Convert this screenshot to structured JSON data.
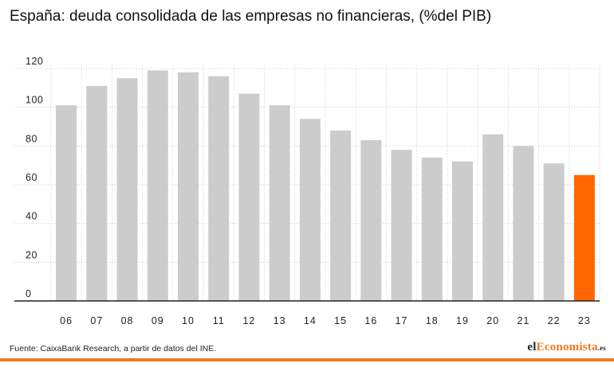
{
  "title": "España: deuda consolidada de las empresas no financieras, (%del PIB)",
  "source": "Fuente: CaixaBank Research, a partir de datos del INE.",
  "brand": {
    "prefix": "el",
    "accent": "Economista",
    "suffix": ".es"
  },
  "colors": {
    "bar": "#cccccc",
    "highlight": "#ff6600",
    "grid": "#cfcfcf",
    "axis": "#222222",
    "rule": "#f07a1e"
  },
  "chart_data": {
    "type": "bar",
    "title": "España: deuda consolidada de las empresas no financieras, (%del PIB)",
    "categories": [
      "06",
      "07",
      "08",
      "09",
      "10",
      "11",
      "12",
      "13",
      "14",
      "15",
      "16",
      "17",
      "18",
      "19",
      "20",
      "21",
      "22",
      "23"
    ],
    "values": [
      101,
      111,
      115,
      119,
      118,
      116,
      107,
      101,
      94,
      88,
      83,
      78,
      74,
      72,
      86,
      80,
      71,
      65
    ],
    "highlight_index": 17,
    "ylim": [
      0,
      120
    ],
    "yticks": [
      0,
      20,
      40,
      60,
      80,
      100,
      120
    ],
    "xlabel": "",
    "ylabel": "",
    "grid": true,
    "legend": "none"
  }
}
